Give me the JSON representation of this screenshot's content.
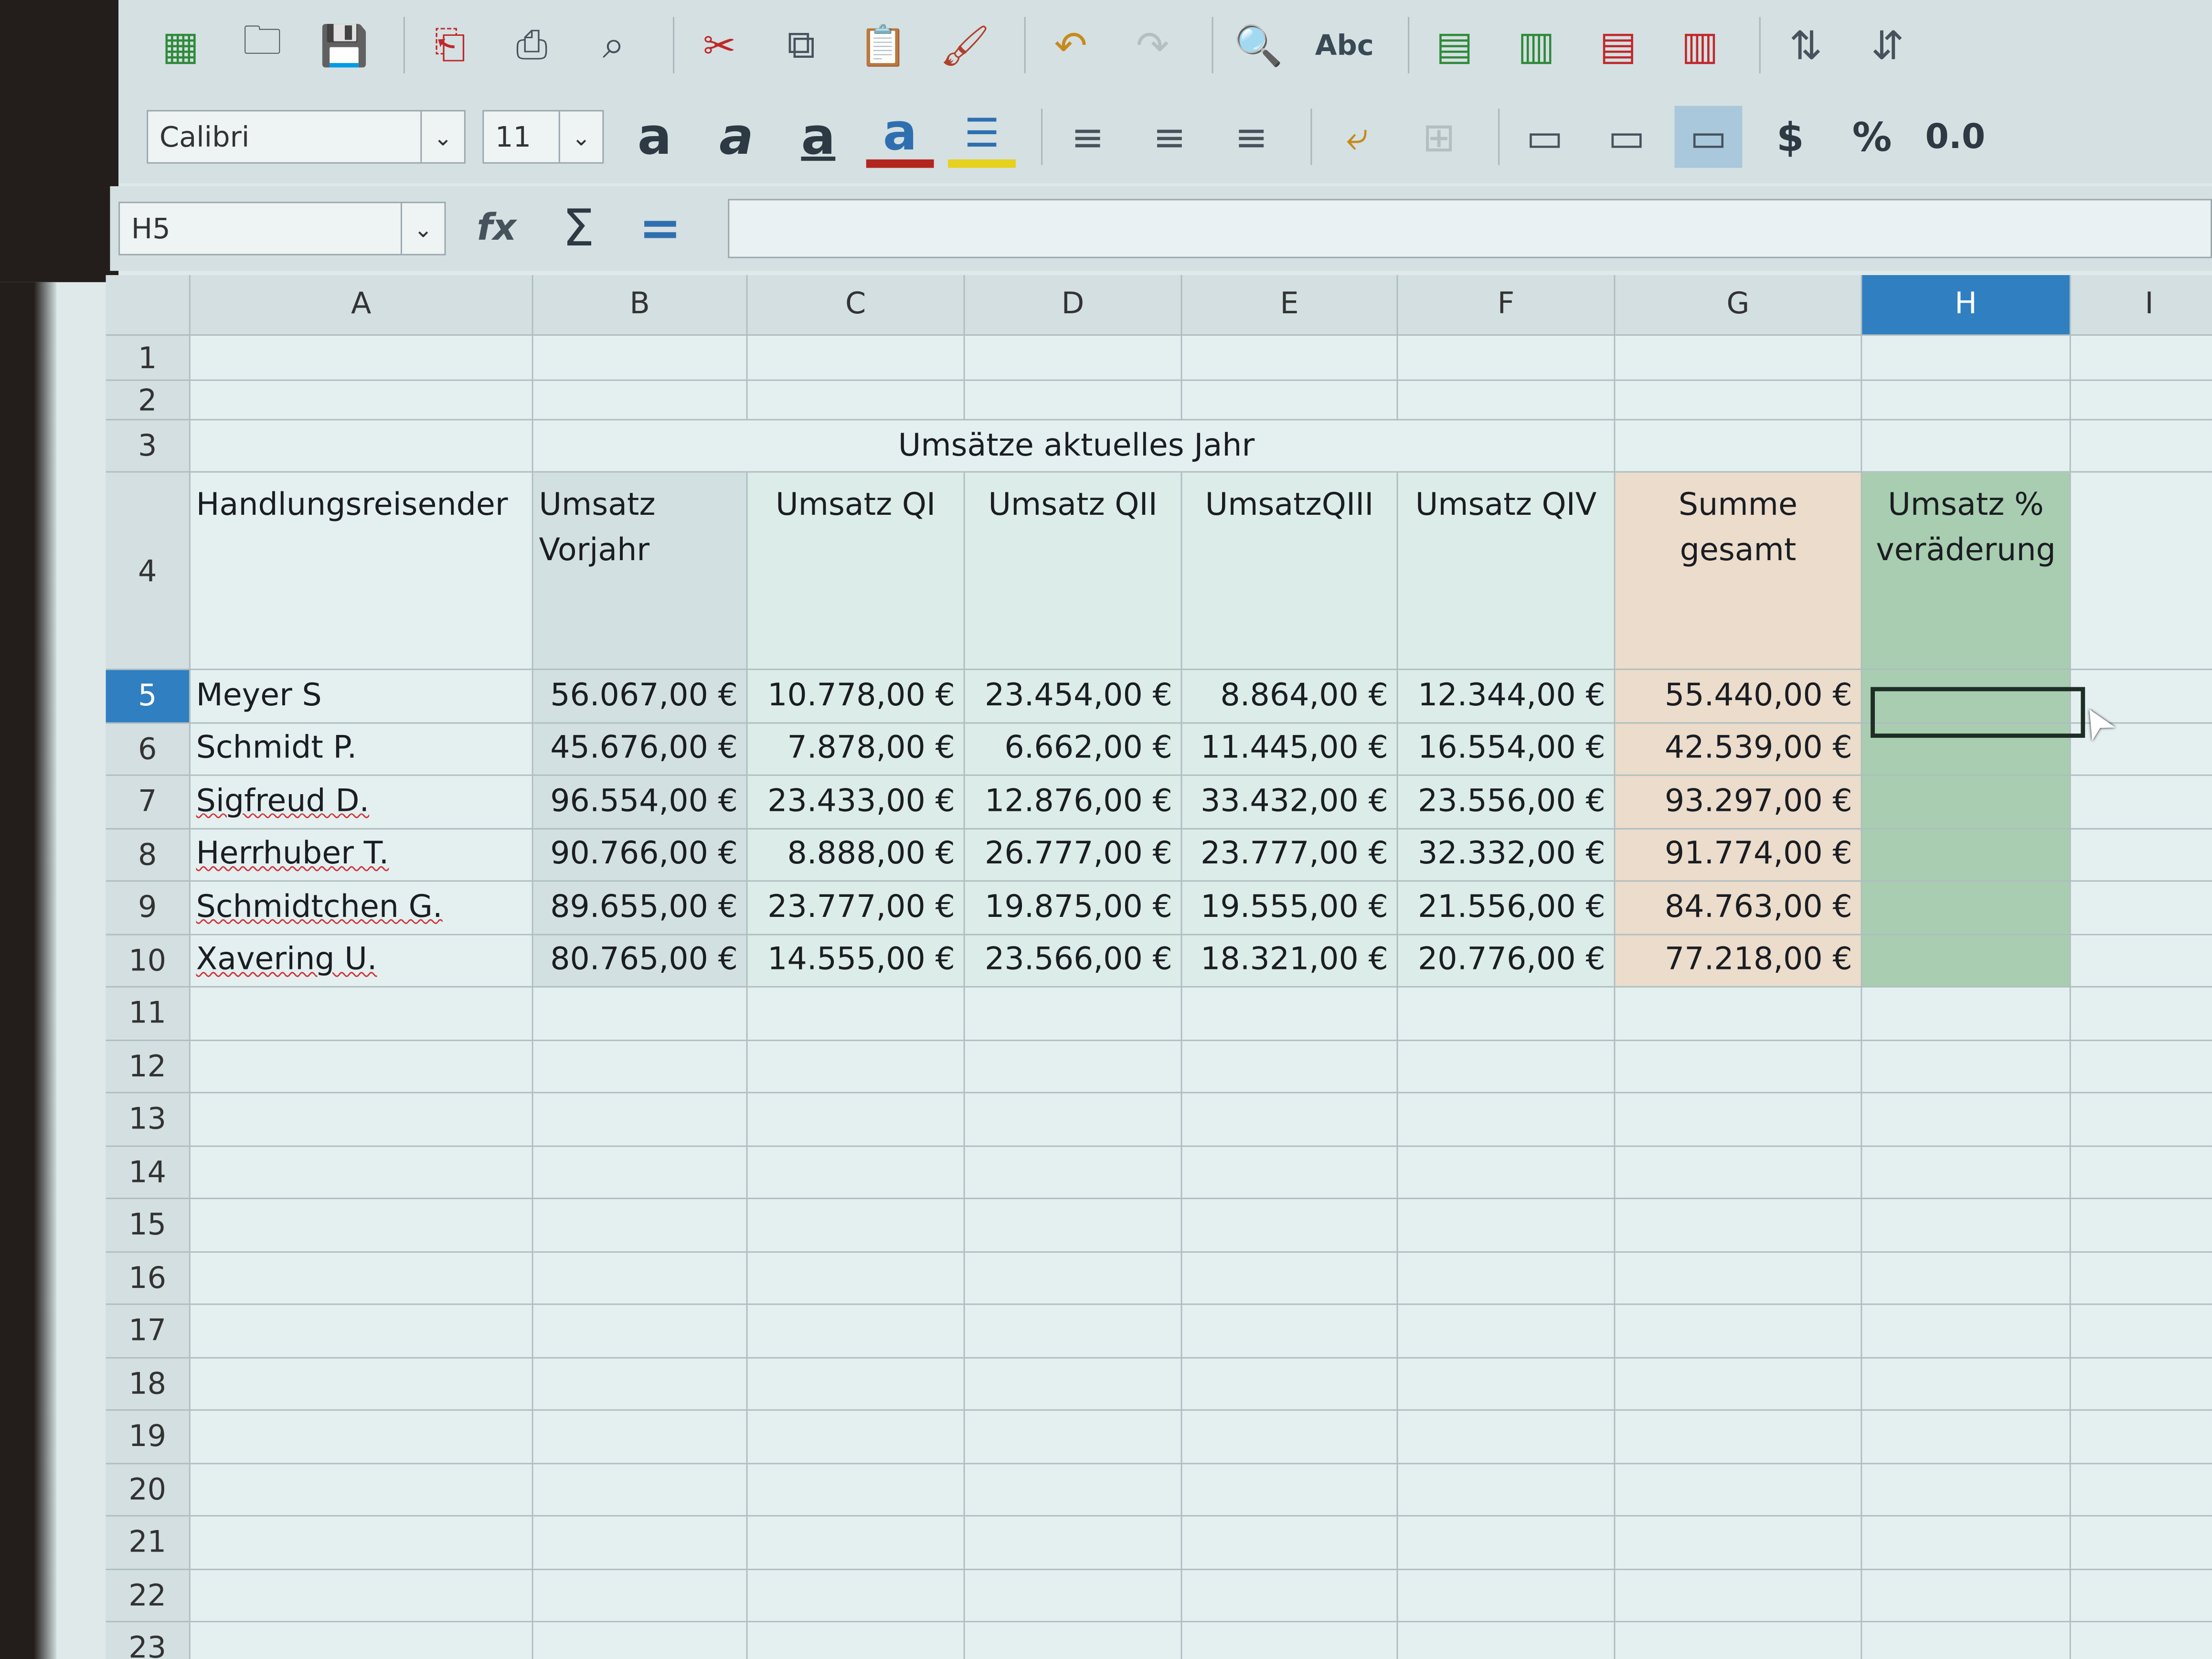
{
  "toolbar": {
    "row1_icons": [
      "new-spreadsheet-icon",
      "open-icon",
      "save-icon",
      "export-pdf-icon",
      "print-icon",
      "print-preview-icon",
      "cut-icon",
      "copy-icon",
      "paste-icon",
      "clone-formatting-icon",
      "undo-icon",
      "redo-icon",
      "find-replace-icon",
      "spellcheck-icon",
      "insert-row-icon",
      "insert-column-icon",
      "delete-row-icon",
      "delete-column-icon",
      "sort-ascending-icon",
      "sort-descending-icon"
    ],
    "spellcheck_label": "Abc",
    "font_name": "Calibri",
    "font_size": "11",
    "bold_label": "a",
    "italic_label": "a",
    "underline_label": "a",
    "font_color_label": "a",
    "currency_label": "$",
    "percent_label": "%",
    "number_label": "0.0",
    "font_color": "#b3261e",
    "highlight_color": "#e6d21e"
  },
  "formula_bar": {
    "name_box": "H5",
    "function_wizard_label": "fx",
    "sum_label": "Σ",
    "equals_label": "=",
    "formula": ""
  },
  "sheet": {
    "columns": [
      "A",
      "B",
      "C",
      "D",
      "E",
      "F",
      "G",
      "H",
      "I"
    ],
    "rows": [
      "1",
      "2",
      "3",
      "4",
      "5",
      "6",
      "7",
      "8",
      "9",
      "10",
      "11",
      "12",
      "13",
      "14",
      "15",
      "16",
      "17",
      "18",
      "19",
      "20",
      "21",
      "22",
      "23"
    ],
    "selected_cell": "H5",
    "title": "Umsätze aktuelles Jahr",
    "headers": [
      "Handlungsreisender",
      "Umsatz Vorjahr",
      "Umsatz QI",
      "Umsatz QII",
      "UmsatzQIII",
      "Umsatz QIV",
      "Summe gesamt",
      "Umsatz % veräderung"
    ],
    "data": [
      [
        "Meyer S",
        "56.067,00 €",
        "10.778,00 €",
        "23.454,00 €",
        "8.864,00 €",
        "12.344,00 €",
        "55.440,00 €",
        ""
      ],
      [
        "Schmidt P.",
        "45.676,00 €",
        "7.878,00 €",
        "6.662,00 €",
        "11.445,00 €",
        "16.554,00 €",
        "42.539,00 €",
        ""
      ],
      [
        "Sigfreud D.",
        "96.554,00 €",
        "23.433,00 €",
        "12.876,00 €",
        "33.432,00 €",
        "23.556,00 €",
        "93.297,00 €",
        ""
      ],
      [
        "Herrhuber T.",
        "90.766,00 €",
        "8.888,00 €",
        "26.777,00 €",
        "23.777,00 €",
        "32.332,00 €",
        "91.774,00 €",
        ""
      ],
      [
        "Schmidtchen G.",
        "89.655,00 €",
        "23.777,00 €",
        "19.875,00 €",
        "19.555,00 €",
        "21.556,00 €",
        "84.763,00 €",
        ""
      ],
      [
        "Xavering U.",
        "80.765,00 €",
        "14.555,00 €",
        "23.566,00 €",
        "18.321,00 €",
        "20.776,00 €",
        "77.218,00 €",
        ""
      ]
    ],
    "colors": {
      "vorjahr": "#d2e0e1",
      "quarters": "#dcece8",
      "summe": "#ebdccb",
      "veraenderung": "#a8cdb0",
      "selection": "#2f7fc1"
    }
  }
}
